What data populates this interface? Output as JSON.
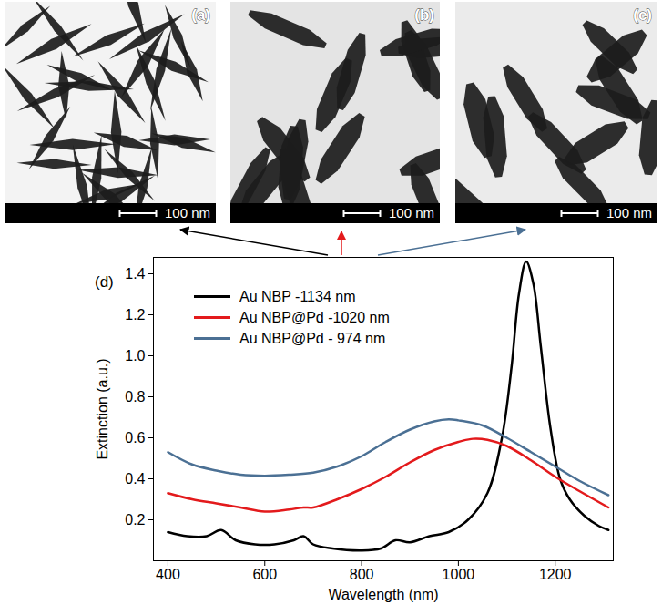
{
  "images": [
    {
      "label": "(a)",
      "scale_bar": "100 nm"
    },
    {
      "label": "(b)",
      "scale_bar": "100 nm"
    },
    {
      "label": "(c)",
      "scale_bar": "100 nm"
    }
  ],
  "chart_data": {
    "type": "line",
    "title": "(d)",
    "x_label": "Wavelength (nm)",
    "y_label": "Extinction (a.u.)",
    "xlim": [
      370,
      1320
    ],
    "xticks": [
      400,
      600,
      800,
      1000,
      1200
    ],
    "ylim": [
      0,
      1.48
    ],
    "yticks": [
      0.2,
      0.4,
      0.6,
      0.8,
      {
        "value": 1,
        "label": "1.0"
      },
      1.2,
      1.4
    ],
    "legend": "upper left",
    "series": [
      {
        "name": "Au NBP -1134 nm",
        "color": "#000000",
        "x": [
          400,
          440,
          480,
          510,
          540,
          580,
          620,
          660,
          680,
          700,
          740,
          800,
          840,
          870,
          900,
          940,
          980,
          1020,
          1060,
          1090,
          1110,
          1125,
          1140,
          1155,
          1170,
          1190,
          1210,
          1230,
          1260,
          1290,
          1310
        ],
        "values": [
          0.14,
          0.12,
          0.12,
          0.15,
          0.1,
          0.08,
          0.08,
          0.1,
          0.12,
          0.08,
          0.06,
          0.05,
          0.06,
          0.1,
          0.09,
          0.12,
          0.14,
          0.2,
          0.33,
          0.6,
          0.95,
          1.3,
          1.46,
          1.35,
          1.05,
          0.65,
          0.4,
          0.3,
          0.22,
          0.17,
          0.15
        ]
      },
      {
        "name": "Au NBP@Pd -1020 nm",
        "color": "#e31a1c",
        "x": [
          400,
          450,
          500,
          550,
          600,
          650,
          680,
          700,
          750,
          800,
          850,
          900,
          950,
          1000,
          1030,
          1060,
          1100,
          1150,
          1200,
          1250,
          1310
        ],
        "values": [
          0.33,
          0.3,
          0.28,
          0.26,
          0.24,
          0.25,
          0.26,
          0.26,
          0.3,
          0.35,
          0.41,
          0.48,
          0.54,
          0.58,
          0.595,
          0.59,
          0.56,
          0.49,
          0.41,
          0.34,
          0.26
        ]
      },
      {
        "name": "Au NBP@Pd - 974 nm",
        "color": "#4b7094",
        "x": [
          400,
          450,
          500,
          550,
          600,
          650,
          700,
          750,
          800,
          850,
          900,
          950,
          980,
          1000,
          1050,
          1100,
          1150,
          1200,
          1250,
          1310
        ],
        "values": [
          0.53,
          0.47,
          0.44,
          0.42,
          0.415,
          0.42,
          0.43,
          0.46,
          0.51,
          0.58,
          0.64,
          0.68,
          0.69,
          0.685,
          0.66,
          0.6,
          0.53,
          0.46,
          0.39,
          0.32
        ]
      }
    ]
  }
}
